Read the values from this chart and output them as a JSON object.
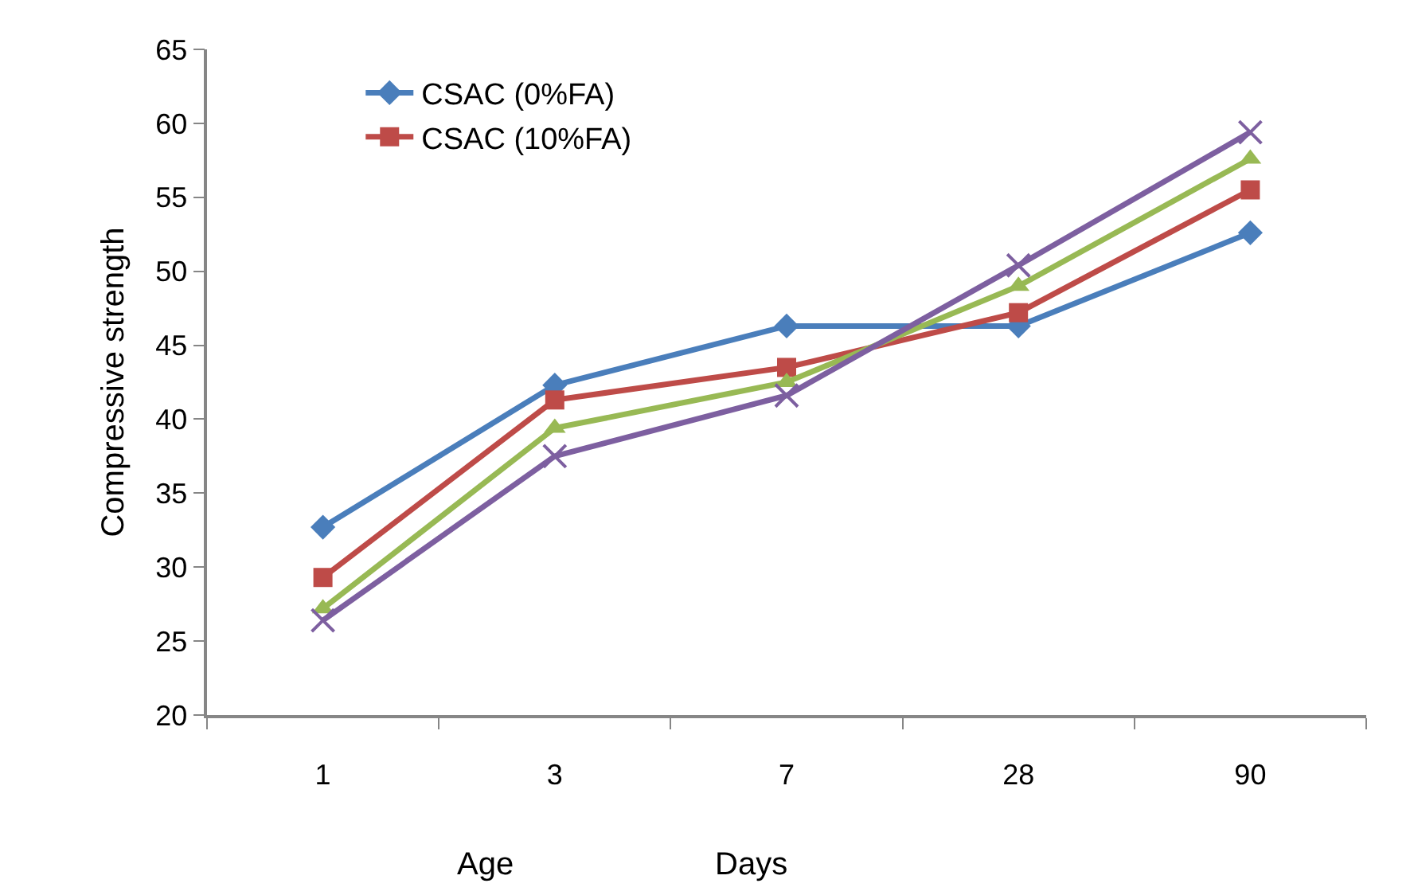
{
  "chart_data": {
    "type": "line",
    "ylabel": "Compressive strength",
    "xlabel": "Age",
    "annotations": [
      "Days"
    ],
    "categories": [
      "1",
      "3",
      "7",
      "28",
      "90"
    ],
    "ylim": [
      20,
      65
    ],
    "yticks": [
      20,
      25,
      30,
      35,
      40,
      45,
      50,
      55,
      60,
      65
    ],
    "grid": false,
    "legend": "top left",
    "series": [
      {
        "name": "CSAC (0%FA)",
        "color": "#4a7ebb",
        "marker": "diamond",
        "values": [
          32.7,
          42.3,
          46.3,
          46.3,
          52.6
        ]
      },
      {
        "name": "CSAC (10%FA)",
        "color": "#be4b48",
        "marker": "square",
        "values": [
          29.3,
          41.3,
          43.5,
          47.2,
          55.5
        ]
      },
      {
        "color": "#98b954",
        "marker": "triangle",
        "values": [
          27.2,
          39.4,
          42.5,
          49,
          57.6
        ]
      },
      {
        "color": "#7d5fa0",
        "marker": "cross",
        "values": [
          26.4,
          37.5,
          41.6,
          50.4,
          59.4
        ]
      }
    ]
  }
}
